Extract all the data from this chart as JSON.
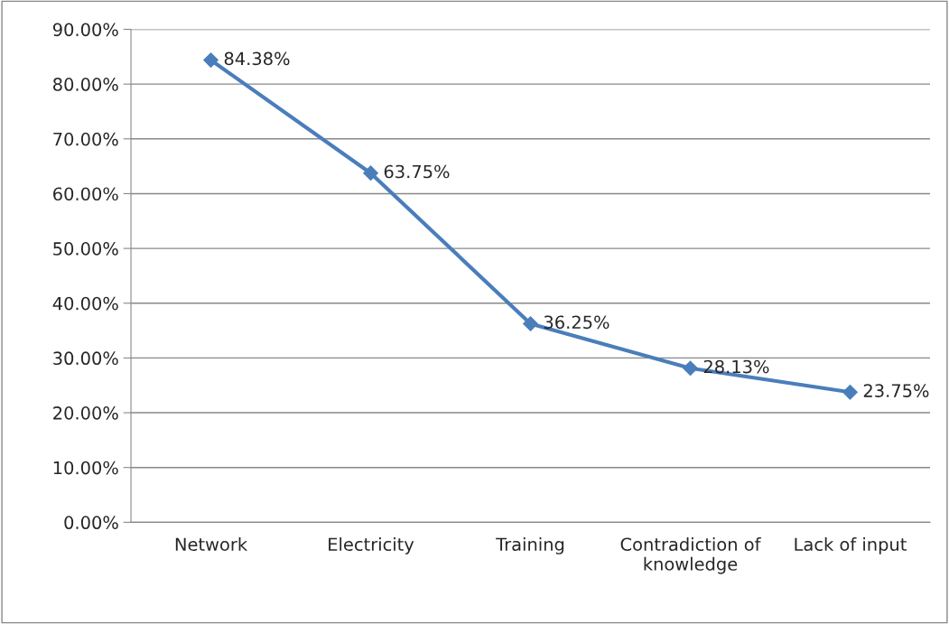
{
  "chart_data": {
    "type": "line",
    "categories": [
      "Network",
      "Electricity",
      "Training",
      "Contradiction of\nknowledge",
      "Lack of input"
    ],
    "series": [
      {
        "color": "#4a7ebb",
        "values": [
          84.38,
          63.75,
          36.25,
          28.13,
          23.75
        ],
        "value_labels": [
          "84.38%",
          "63.75%",
          "36.25%",
          "28.13%",
          "23.75%"
        ]
      }
    ],
    "ylim": [
      0,
      90
    ],
    "yticks": [
      {
        "value": 0,
        "label": "0.00%"
      },
      {
        "value": 10,
        "label": "10.00%"
      },
      {
        "value": 20,
        "label": "20.00%"
      },
      {
        "value": 30,
        "label": "30.00%"
      },
      {
        "value": 40,
        "label": "40.00%"
      },
      {
        "value": 50,
        "label": "50.00%"
      },
      {
        "value": 60,
        "label": "60.00%"
      },
      {
        "value": 70,
        "label": "70.00%"
      },
      {
        "value": 80,
        "label": "80.00%"
      },
      {
        "value": 90,
        "label": "90.00%"
      }
    ],
    "grid": "y",
    "marker": "diamond",
    "line_style": "solid"
  }
}
